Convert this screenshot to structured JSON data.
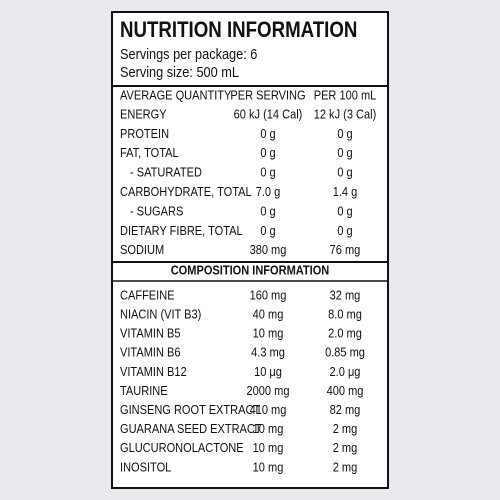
{
  "title": "NUTRITION INFORMATION",
  "servings": "Servings per package: 6",
  "serving_size": "Serving size: 500 mL",
  "nutrition": {
    "header": [
      "AVERAGE QUANTITY",
      "PER SERVING",
      "PER 100 mL"
    ],
    "rows": [
      [
        "ENERGY",
        "60 kJ (14 Cal)",
        "12 kJ (3 Cal)"
      ],
      [
        "PROTEIN",
        "0 g",
        "0 g"
      ],
      [
        "FAT, TOTAL",
        "0 g",
        "0 g"
      ],
      [
        "- SATURATED",
        "0 g",
        "0 g"
      ],
      [
        "CARBOHYDRATE, TOTAL",
        "7.0 g",
        "1.4 g"
      ],
      [
        "- SUGARS",
        "0 g",
        "0 g"
      ],
      [
        "DIETARY FIBRE, TOTAL",
        "0 g",
        "0 g"
      ],
      [
        "SODIUM",
        "380 mg",
        "76 mg"
      ]
    ]
  },
  "composition": {
    "title": "COMPOSITION INFORMATION",
    "rows": [
      [
        "CAFFEINE",
        "160 mg",
        "32 mg"
      ],
      [
        "NIACIN (VIT B3)",
        "40 mg",
        "8.0 mg"
      ],
      [
        "VITAMIN B5",
        "10 mg",
        "2.0 mg"
      ],
      [
        "VITAMIN B6",
        "4.3 mg",
        "0.85 mg"
      ],
      [
        "VITAMIN B12",
        "10 μg",
        "2.0 μg"
      ],
      [
        "TAURINE",
        "2000 mg",
        "400 mg"
      ],
      [
        "GINSENG ROOT EXTRACT",
        "410 mg",
        "82 mg"
      ],
      [
        "GUARANA SEED EXTRACT",
        "10 mg",
        "2 mg"
      ],
      [
        "GLUCURONOLACTONE",
        "10 mg",
        "2 mg"
      ],
      [
        "INOSITOL",
        "10 mg",
        "2 mg"
      ]
    ]
  }
}
